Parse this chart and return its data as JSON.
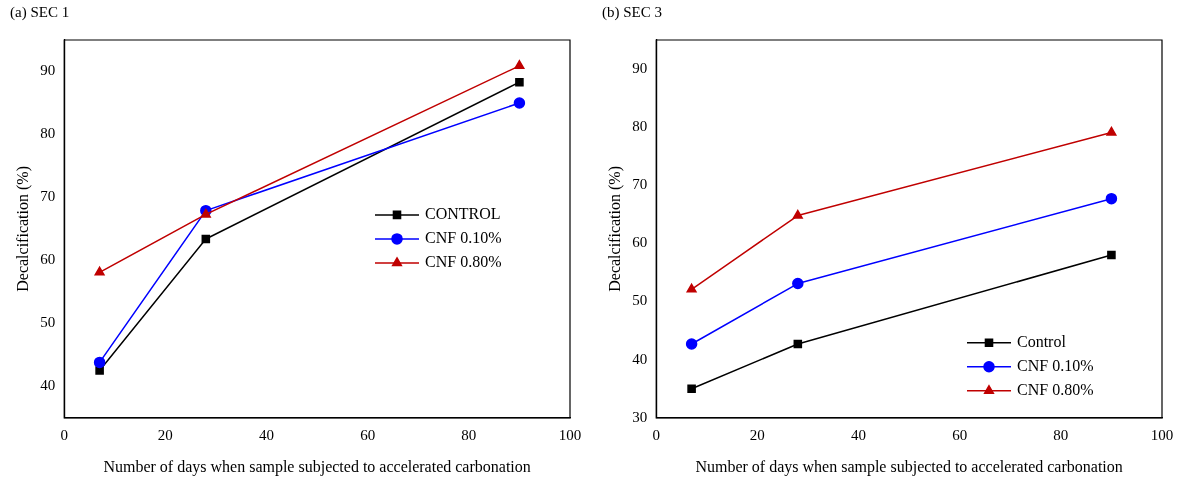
{
  "chart_data": [
    {
      "type": "line",
      "title": "(a) SEC 1",
      "xlabel": "Number of days when sample subjected to accelerated carbonation",
      "ylabel": "Decalcification (%)",
      "x": [
        7,
        28,
        90
      ],
      "xlim": [
        0,
        100
      ],
      "xticks": [
        0,
        20,
        40,
        60,
        80,
        100
      ],
      "ylim": [
        35,
        95
      ],
      "yticks": [
        40,
        50,
        60,
        70,
        80,
        90
      ],
      "grid": false,
      "legend": "right",
      "series": [
        {
          "name": "CONTROL",
          "color": "#000000",
          "marker": "square",
          "values": [
            42.5,
            63.4,
            88.3
          ]
        },
        {
          "name": "CNF 0.10%",
          "color": "#0000ff",
          "marker": "circle",
          "values": [
            43.8,
            67.9,
            85.0
          ]
        },
        {
          "name": "CNF 0.80%",
          "color": "#c00000",
          "marker": "triangle",
          "values": [
            58.1,
            67.3,
            90.9
          ]
        }
      ]
    },
    {
      "type": "line",
      "title": "(b) SEC 3",
      "xlabel": "Number of days when sample subjected to accelerated carbonation",
      "ylabel": "Decalcification (%)",
      "x": [
        7,
        28,
        90
      ],
      "xlim": [
        0,
        100
      ],
      "xticks": [
        0,
        20,
        40,
        60,
        80,
        100
      ],
      "ylim": [
        30,
        95
      ],
      "yticks": [
        30,
        40,
        50,
        60,
        70,
        80,
        90
      ],
      "grid": false,
      "legend": "bottom right",
      "series": [
        {
          "name": "Control",
          "color": "#000000",
          "marker": "square",
          "values": [
            35.0,
            42.7,
            58.0
          ]
        },
        {
          "name": "CNF 0.10%",
          "color": "#0000ff",
          "marker": "circle",
          "values": [
            42.7,
            53.1,
            67.7
          ]
        },
        {
          "name": "CNF 0.80%",
          "color": "#c00000",
          "marker": "triangle",
          "values": [
            52.1,
            64.8,
            79.1
          ]
        }
      ]
    }
  ]
}
